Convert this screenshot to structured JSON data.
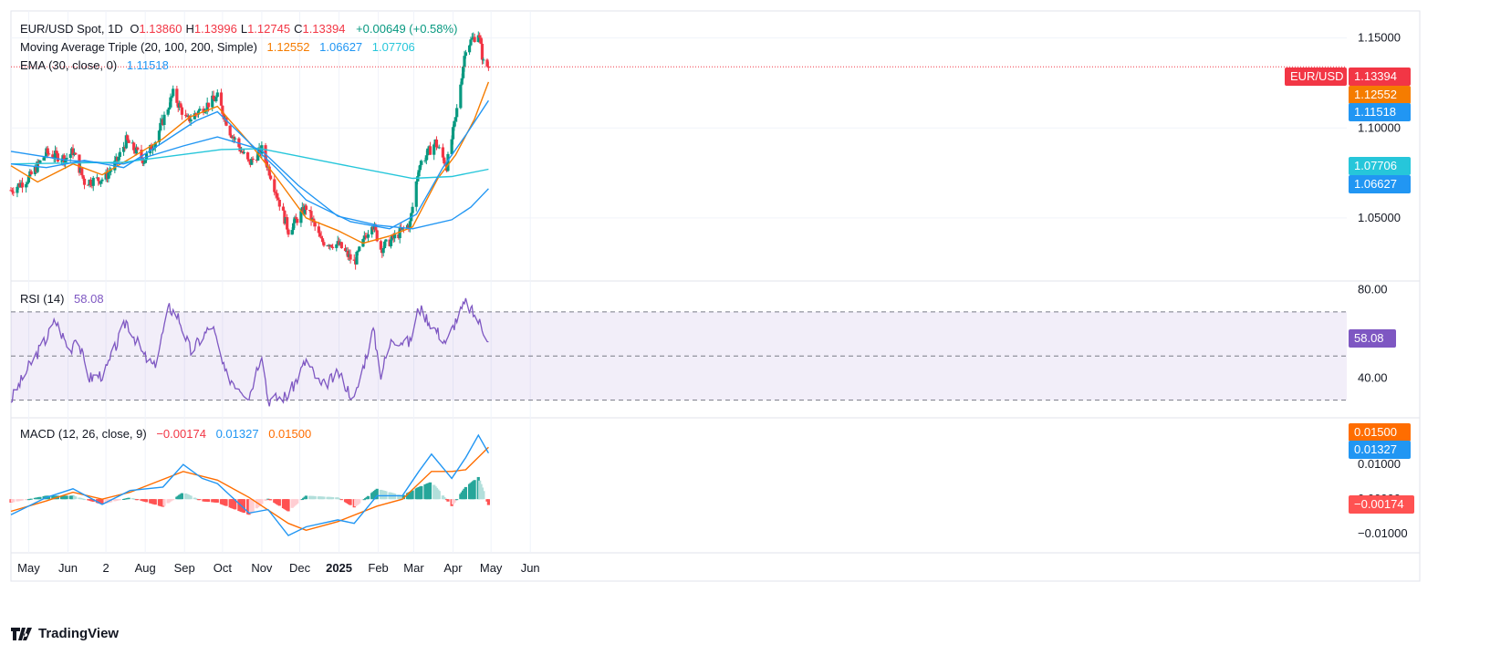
{
  "header": {
    "symbol": "EUR/USD Spot, 1D",
    "ohlc": [
      {
        "k": "O",
        "v": "1.13860"
      },
      {
        "k": "H",
        "v": "1.13996"
      },
      {
        "k": "L",
        "v": "1.12745"
      },
      {
        "k": "C",
        "v": "1.13394"
      }
    ],
    "change": "+0.00649 (+0.58%)"
  },
  "ma_legend": {
    "label": "Moving Average Triple (20, 100, 200, Simple)",
    "values": [
      "1.12552",
      "1.06627",
      "1.07706"
    ]
  },
  "ema_legend": {
    "label": "EMA (30, close, 0)",
    "value": "1.11518"
  },
  "rsi_legend": {
    "label": "RSI (14)",
    "value": "58.08"
  },
  "macd_legend": {
    "label": "MACD (12, 26, close, 9)",
    "values": [
      "−0.00174",
      "0.01327",
      "0.01500"
    ]
  },
  "tags": {
    "symbol": "EUR/USD",
    "price": "1.13394",
    "ma20": "1.12552",
    "ema30": "1.11518",
    "ma200": "1.07706",
    "ma100": "1.06627",
    "rsi": "58.08",
    "macd_signal": "0.01500",
    "macd_line": "0.01327",
    "macd_hist": "−0.00174"
  },
  "branding": "TradingView",
  "colors": {
    "up": "#089981",
    "down": "#f23645",
    "ma20": "#f57c00",
    "ma100": "#2196f3",
    "ma200": "#26c6da",
    "ema30": "#2196f3",
    "rsi": "#7e57c2",
    "macd": "#2196f3",
    "signal": "#ff6d00",
    "hist_up_strong": "#26a69a",
    "hist_up_weak": "#b2dfdb",
    "hist_down_strong": "#ff5252",
    "hist_down_weak": "#ffcdd2"
  },
  "chart_data": [
    {
      "type": "candlestick",
      "title": "EUR/USD Spot, 1D",
      "x_ticks": [
        "May",
        "Jun",
        "2",
        "Aug",
        "Sep",
        "Oct",
        "Nov",
        "Dec",
        "2025",
        "Feb",
        "Mar",
        "Apr",
        "May",
        "Jun"
      ],
      "y_ticks": [
        "1.15000",
        "1.10000",
        "1.05000"
      ],
      "ylim": [
        1.015,
        1.165
      ],
      "series": [
        {
          "name": "Close",
          "points": [
            [
              "2024-04-17",
              1.0655
            ],
            [
              "2024-05-01",
              1.072
            ],
            [
              "2024-05-15",
              1.086
            ],
            [
              "2024-05-30",
              1.083
            ],
            [
              "2024-06-05",
              1.087
            ],
            [
              "2024-06-14",
              1.07
            ],
            [
              "2024-06-30",
              1.072
            ],
            [
              "2024-07-10",
              1.082
            ],
            [
              "2024-07-17",
              1.093
            ],
            [
              "2024-07-31",
              1.082
            ],
            [
              "2024-08-09",
              1.093
            ],
            [
              "2024-08-23",
              1.119
            ],
            [
              "2024-09-03",
              1.104
            ],
            [
              "2024-09-17",
              1.112
            ],
            [
              "2024-09-27",
              1.117
            ],
            [
              "2024-10-07",
              1.098
            ],
            [
              "2024-10-22",
              1.08
            ],
            [
              "2024-11-01",
              1.088
            ],
            [
              "2024-11-08",
              1.074
            ],
            [
              "2024-11-22",
              1.043
            ],
            [
              "2024-12-06",
              1.056
            ],
            [
              "2024-12-18",
              1.037
            ],
            [
              "2025-01-01",
              1.035
            ],
            [
              "2025-01-13",
              1.025
            ],
            [
              "2025-01-27",
              1.048
            ],
            [
              "2025-02-03",
              1.033
            ],
            [
              "2025-02-12",
              1.038
            ],
            [
              "2025-02-26",
              1.047
            ],
            [
              "2025-03-05",
              1.079
            ],
            [
              "2025-03-18",
              1.092
            ],
            [
              "2025-03-27",
              1.079
            ],
            [
              "2025-04-03",
              1.105
            ],
            [
              "2025-04-11",
              1.145
            ],
            [
              "2025-04-21",
              1.153
            ],
            [
              "2025-04-25",
              1.136
            ],
            [
              "2025-04-29",
              1.1339
            ]
          ]
        },
        {
          "name": "MA 20",
          "points": [
            [
              "2024-04-17",
              1.079
            ],
            [
              "2024-05-08",
              1.07
            ],
            [
              "2024-06-05",
              1.08
            ],
            [
              "2024-06-28",
              1.074
            ],
            [
              "2024-07-20",
              1.083
            ],
            [
              "2024-08-15",
              1.094
            ],
            [
              "2024-09-05",
              1.106
            ],
            [
              "2024-09-27",
              1.112
            ],
            [
              "2024-10-22",
              1.092
            ],
            [
              "2024-11-12",
              1.073
            ],
            [
              "2024-12-06",
              1.05
            ],
            [
              "2024-12-31",
              1.043
            ],
            [
              "2025-01-20",
              1.036
            ],
            [
              "2025-02-10",
              1.04
            ],
            [
              "2025-02-28",
              1.045
            ],
            [
              "2025-03-20",
              1.072
            ],
            [
              "2025-04-03",
              1.085
            ],
            [
              "2025-04-18",
              1.105
            ],
            [
              "2025-04-29",
              1.1255
            ]
          ]
        },
        {
          "name": "MA 100",
          "points": [
            [
              "2024-04-17",
              1.087
            ],
            [
              "2024-06-01",
              1.082
            ],
            [
              "2024-07-15",
              1.08
            ],
            [
              "2024-08-31",
              1.09
            ],
            [
              "2024-09-27",
              1.095
            ],
            [
              "2024-10-31",
              1.088
            ],
            [
              "2024-11-30",
              1.068
            ],
            [
              "2024-12-31",
              1.051
            ],
            [
              "2025-01-31",
              1.046
            ],
            [
              "2025-02-28",
              1.044
            ],
            [
              "2025-03-31",
              1.049
            ],
            [
              "2025-04-15",
              1.056
            ],
            [
              "2025-04-29",
              1.0663
            ]
          ]
        },
        {
          "name": "MA 200",
          "points": [
            [
              "2024-04-17",
              1.08
            ],
            [
              "2024-07-15",
              1.081
            ],
            [
              "2024-09-30",
              1.088
            ],
            [
              "2024-10-31",
              1.0885
            ],
            [
              "2024-12-31",
              1.08
            ],
            [
              "2025-02-28",
              1.072
            ],
            [
              "2025-03-31",
              1.073
            ],
            [
              "2025-04-29",
              1.0771
            ]
          ]
        },
        {
          "name": "EMA 30",
          "points": [
            [
              "2024-04-17",
              1.08
            ],
            [
              "2024-05-15",
              1.078
            ],
            [
              "2024-06-14",
              1.082
            ],
            [
              "2024-07-15",
              1.078
            ],
            [
              "2024-08-15",
              1.092
            ],
            [
              "2024-09-10",
              1.104
            ],
            [
              "2024-09-27",
              1.109
            ],
            [
              "2024-10-22",
              1.092
            ],
            [
              "2024-11-12",
              1.078
            ],
            [
              "2024-12-06",
              1.06
            ],
            [
              "2025-01-10",
              1.048
            ],
            [
              "2025-02-10",
              1.044
            ],
            [
              "2025-03-03",
              1.052
            ],
            [
              "2025-03-24",
              1.078
            ],
            [
              "2025-04-11",
              1.096
            ],
            [
              "2025-04-29",
              1.1152
            ]
          ]
        }
      ]
    },
    {
      "type": "line",
      "title": "RSI (14)",
      "y_ticks": [
        "80.00",
        "40.00"
      ],
      "ylim": [
        22,
        84
      ],
      "bands": [
        70,
        50,
        30
      ],
      "series": [
        {
          "name": "RSI",
          "points": [
            [
              "2024-04-17",
              30
            ],
            [
              "2024-05-01",
              45
            ],
            [
              "2024-05-15",
              58
            ],
            [
              "2024-05-22",
              66
            ],
            [
              "2024-06-03",
              52
            ],
            [
              "2024-06-07",
              60
            ],
            [
              "2024-06-18",
              40
            ],
            [
              "2024-06-30",
              42
            ],
            [
              "2024-07-17",
              66
            ],
            [
              "2024-07-31",
              50
            ],
            [
              "2024-08-08",
              45
            ],
            [
              "2024-08-20",
              72
            ],
            [
              "2024-08-27",
              68
            ],
            [
              "2024-09-06",
              52
            ],
            [
              "2024-09-17",
              60
            ],
            [
              "2024-09-23",
              64
            ],
            [
              "2024-10-03",
              42
            ],
            [
              "2024-10-22",
              32
            ],
            [
              "2024-11-01",
              52
            ],
            [
              "2024-11-06",
              30
            ],
            [
              "2024-11-22",
              32
            ],
            [
              "2024-12-06",
              48
            ],
            [
              "2024-12-18",
              36
            ],
            [
              "2025-01-01",
              42
            ],
            [
              "2025-01-13",
              30
            ],
            [
              "2025-01-28",
              62
            ],
            [
              "2025-02-03",
              42
            ],
            [
              "2025-02-12",
              58
            ],
            [
              "2025-02-26",
              56
            ],
            [
              "2025-03-05",
              72
            ],
            [
              "2025-03-18",
              62
            ],
            [
              "2025-03-27",
              56
            ],
            [
              "2025-04-03",
              66
            ],
            [
              "2025-04-11",
              74
            ],
            [
              "2025-04-21",
              66
            ],
            [
              "2025-04-25",
              62
            ],
            [
              "2025-04-29",
              58.08
            ]
          ]
        }
      ]
    },
    {
      "type": "bar+line",
      "title": "MACD (12, 26, close, 9)",
      "y_ticks": [
        "0.01000",
        "0.00000",
        "−0.01000"
      ],
      "ylim": [
        -0.0155,
        0.0235
      ],
      "series": [
        {
          "name": "MACD",
          "points": [
            [
              "2024-04-17",
              -0.0045
            ],
            [
              "2024-05-15",
              0.0005
            ],
            [
              "2024-06-05",
              0.003
            ],
            [
              "2024-06-28",
              -0.0015
            ],
            [
              "2024-07-20",
              0.0025
            ],
            [
              "2024-08-15",
              0.0035
            ],
            [
              "2024-08-31",
              0.01
            ],
            [
              "2024-09-15",
              0.006
            ],
            [
              "2024-09-27",
              0.0045
            ],
            [
              "2024-10-22",
              -0.004
            ],
            [
              "2024-11-06",
              -0.003
            ],
            [
              "2024-11-22",
              -0.0105
            ],
            [
              "2024-12-06",
              -0.008
            ],
            [
              "2024-12-31",
              -0.006
            ],
            [
              "2025-01-13",
              -0.007
            ],
            [
              "2025-01-31",
              0.001
            ],
            [
              "2025-02-20",
              0.001
            ],
            [
              "2025-03-05",
              0.008
            ],
            [
              "2025-03-15",
              0.013
            ],
            [
              "2025-03-31",
              0.006
            ],
            [
              "2025-04-11",
              0.012
            ],
            [
              "2025-04-21",
              0.0185
            ],
            [
              "2025-04-29",
              0.0133
            ]
          ]
        },
        {
          "name": "Signal",
          "points": [
            [
              "2024-04-17",
              -0.0035
            ],
            [
              "2024-05-15",
              -0.0005
            ],
            [
              "2024-06-05",
              0.002
            ],
            [
              "2024-06-28",
              0.0
            ],
            [
              "2024-07-20",
              0.002
            ],
            [
              "2024-08-31",
              0.008
            ],
            [
              "2024-09-27",
              0.0055
            ],
            [
              "2024-10-22",
              0.0005
            ],
            [
              "2024-11-22",
              -0.007
            ],
            [
              "2024-12-06",
              -0.009
            ],
            [
              "2024-12-31",
              -0.0065
            ],
            [
              "2025-01-31",
              -0.002
            ],
            [
              "2025-02-20",
              0.0
            ],
            [
              "2025-03-15",
              0.008
            ],
            [
              "2025-03-31",
              0.008
            ],
            [
              "2025-04-11",
              0.0085
            ],
            [
              "2025-04-29",
              0.015
            ]
          ]
        }
      ]
    }
  ]
}
